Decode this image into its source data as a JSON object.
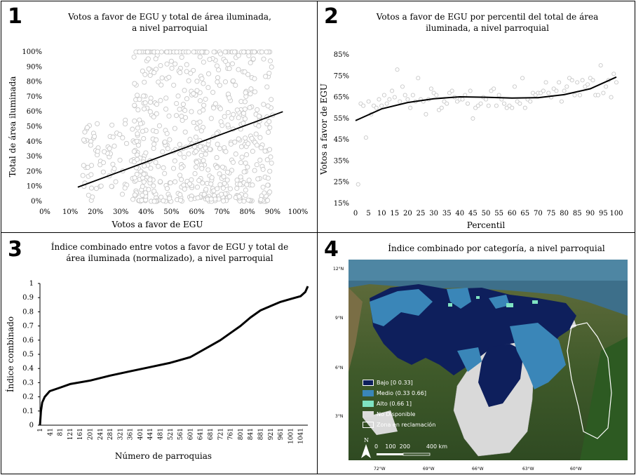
{
  "panels": {
    "p1": {
      "number": "1",
      "title_line1": "Votos a favor de EGU y total de área iluminada,",
      "title_line2": "a nivel parroquial"
    },
    "p2": {
      "number": "2",
      "title_line1": "Votos a favor de EGU por percentil del total de área",
      "title_line2": "iluminada, a nivel parroquial"
    },
    "p3": {
      "number": "3",
      "title_line1": "Índice combinado entre votos a favor de EGU y total de",
      "title_line2": "área iluminada (normalizado), a nivel parroquial"
    },
    "p4": {
      "number": "4",
      "title_line1": "Índice combinado por categoría, a nivel parroquial"
    }
  },
  "chart_data": [
    {
      "type": "scatter",
      "title": "Votos a favor de EGU y total de área iluminada, a nivel parroquial",
      "xlabel": "Votos a favor de EGU",
      "ylabel": "Total de área iluminada",
      "xlim": [
        0,
        100
      ],
      "ylim": [
        0,
        100
      ],
      "x_ticks": [
        "0%",
        "10%",
        "20%",
        "30%",
        "40%",
        "50%",
        "60%",
        "70%",
        "80%",
        "90%",
        "100%"
      ],
      "y_ticks": [
        "0%",
        "10%",
        "20%",
        "30%",
        "40%",
        "50%",
        "60%",
        "70%",
        "80%",
        "90%",
        "100%"
      ],
      "trendline": {
        "x": [
          13,
          94
        ],
        "y": [
          9.5,
          60
        ]
      },
      "grid": false,
      "point_color": "#c8c8c8"
    },
    {
      "type": "scatter",
      "title": "Votos a favor de EGU por percentil del total de área iluminada, a nivel parroquial",
      "xlabel": "Percentil",
      "ylabel": "Votos a favor de EGU",
      "xlim": [
        0,
        100
      ],
      "ylim": [
        15,
        85
      ],
      "x_ticks": [
        "0",
        "5",
        "10",
        "15",
        "20",
        "25",
        "30",
        "35",
        "40",
        "45",
        "50",
        "55",
        "60",
        "65",
        "70",
        "75",
        "80",
        "85",
        "90",
        "95",
        "100"
      ],
      "y_ticks": [
        "15%",
        "25%",
        "35%",
        "45%",
        "55%",
        "65%",
        "75%",
        "85%"
      ],
      "x": [
        1,
        2,
        3,
        4,
        5,
        6,
        7,
        8,
        9,
        10,
        11,
        12,
        13,
        14,
        15,
        16,
        17,
        18,
        19,
        20,
        21,
        22,
        23,
        24,
        25,
        26,
        27,
        28,
        29,
        30,
        31,
        32,
        33,
        34,
        35,
        36,
        37,
        38,
        39,
        40,
        41,
        42,
        43,
        44,
        45,
        46,
        47,
        48,
        49,
        50,
        51,
        52,
        53,
        54,
        55,
        56,
        57,
        58,
        59,
        60,
        61,
        62,
        63,
        64,
        65,
        66,
        67,
        68,
        69,
        70,
        71,
        72,
        73,
        74,
        75,
        76,
        77,
        78,
        79,
        80,
        81,
        82,
        83,
        84,
        85,
        86,
        87,
        88,
        89,
        90,
        91,
        92,
        93,
        94,
        95,
        96,
        97,
        98,
        99,
        100
      ],
      "values": [
        24,
        62,
        61,
        46,
        63,
        57,
        61,
        60,
        64,
        61,
        66,
        62,
        64,
        68,
        65,
        78,
        63,
        70,
        66,
        64,
        60,
        66,
        63,
        74,
        64,
        63,
        57,
        64,
        69,
        67,
        66,
        59,
        60,
        63,
        62,
        67,
        68,
        65,
        63,
        64,
        64,
        66,
        62,
        68,
        55,
        60,
        61,
        62,
        65,
        64,
        61,
        68,
        69,
        61,
        66,
        64,
        62,
        60,
        61,
        60,
        70,
        63,
        62,
        74,
        60,
        64,
        63,
        67,
        66,
        67,
        67,
        68,
        72,
        67,
        65,
        69,
        68,
        72,
        63,
        68,
        70,
        74,
        73,
        66,
        72,
        66,
        73,
        70,
        71,
        74,
        73,
        66,
        66,
        80,
        67,
        70,
        73,
        65,
        76,
        72
      ],
      "trendline": {
        "x": [
          0,
          10,
          20,
          30,
          40,
          50,
          60,
          70,
          80,
          90,
          100
        ],
        "y": [
          54,
          59.5,
          62.5,
          64.3,
          65.2,
          65,
          64.6,
          64.8,
          66.2,
          69,
          74.5
        ]
      },
      "grid": false,
      "point_color": "#c8c8c8"
    },
    {
      "type": "line",
      "title": "Índice combinado entre votos a favor de EGU y total de área iluminada (normalizado), a nivel parroquial",
      "xlabel": "Número de parroquias",
      "ylabel": "Índice combinado",
      "xlim": [
        1,
        1070
      ],
      "ylim": [
        0,
        1
      ],
      "x_ticks": [
        "1",
        "41",
        "81",
        "121",
        "161",
        "201",
        "241",
        "281",
        "321",
        "361",
        "401",
        "441",
        "481",
        "521",
        "561",
        "601",
        "641",
        "681",
        "721",
        "761",
        "801",
        "841",
        "881",
        "921",
        "961",
        "1001",
        "1041"
      ],
      "y_ticks": [
        "0",
        "0.1",
        "0.2",
        "0.3",
        "0.4",
        "0.5",
        "0.6",
        "0.7",
        "0.8",
        "0.9",
        "1"
      ],
      "x": [
        1,
        5,
        10,
        20,
        40,
        81,
        121,
        201,
        281,
        361,
        441,
        521,
        601,
        641,
        681,
        721,
        761,
        801,
        841,
        881,
        921,
        961,
        1001,
        1041,
        1060,
        1070
      ],
      "values": [
        0,
        0.1,
        0.16,
        0.2,
        0.24,
        0.265,
        0.29,
        0.315,
        0.35,
        0.38,
        0.41,
        0.44,
        0.48,
        0.52,
        0.56,
        0.6,
        0.65,
        0.7,
        0.76,
        0.81,
        0.84,
        0.87,
        0.89,
        0.91,
        0.94,
        0.98
      ],
      "grid": false
    }
  ],
  "map": {
    "lat_labels": [
      "12°N",
      "9°N",
      "6°N",
      "3°N"
    ],
    "lon_labels": [
      "72°W",
      "69°W",
      "66°W",
      "63°W",
      "60°W"
    ],
    "legend": [
      {
        "label": "Bajo [0 0.33]",
        "color": "#0e1f5c"
      },
      {
        "label": "Medio (0.33 0.66]",
        "color": "#3a86b8"
      },
      {
        "label": "Alto (0.66 1]",
        "color": "#7fe3c2"
      },
      {
        "label": "No Disponible",
        "color": "#dcdcdc"
      },
      {
        "label": "Zona en reclamación",
        "color": "transparent"
      }
    ],
    "north": "N",
    "scale": [
      "0",
      "100",
      "200",
      "400 km"
    ]
  }
}
